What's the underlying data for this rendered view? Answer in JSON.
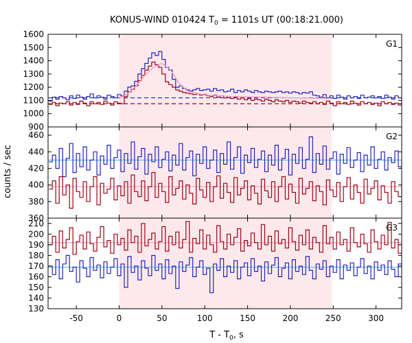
{
  "title": {
    "main": "KONUS-WIND 010424 T",
    "sub": "0",
    "rest": " = 1101s UT (00:18:21.000)"
  },
  "ylabel": "counts / sec",
  "xlabel": {
    "main": "T - T",
    "sub": "0",
    "rest": ", s"
  },
  "colors": {
    "blue": "#2020c0",
    "red": "#a00010",
    "fit": "#f0a0c8",
    "cyan": "#60c0e8",
    "band": "#fde9ec",
    "axis": "#000000"
  },
  "chart_data": {
    "type": "line",
    "xlim": [
      -83,
      330
    ],
    "x_ticks": [
      -50,
      0,
      50,
      100,
      150,
      200,
      250,
      300
    ],
    "highlight_interval": [
      0,
      248
    ],
    "panels": [
      {
        "label": "G1",
        "ylim": [
          900,
          1600
        ],
        "y_ticks": [
          900,
          1000,
          1100,
          1200,
          1300,
          1400,
          1500,
          1600
        ],
        "background_levels": [
          {
            "series": "blue",
            "value": 1120,
            "style": "dashed"
          },
          {
            "series": "red",
            "value": 1075,
            "style": "dashed"
          }
        ],
        "fit": {
          "name": "pink fit",
          "x": [
            0,
            10,
            20,
            30,
            40,
            50,
            60,
            70,
            80,
            100,
            130,
            170,
            200,
            248
          ],
          "values": [
            1115,
            1150,
            1210,
            1290,
            1350,
            1380,
            1330,
            1230,
            1170,
            1140,
            1130,
            1125,
            1120,
            1115
          ]
        },
        "series": [
          {
            "color": "blue",
            "x0": -82,
            "dx": 4,
            "values": [
              1095,
              1125,
              1110,
              1130,
              1120,
              1105,
              1135,
              1115,
              1140,
              1125,
              1110,
              1130,
              1150,
              1120,
              1135,
              1125,
              1110,
              1140,
              1130,
              1120,
              1145,
              1135,
              1170,
              1200,
              1210,
              1245,
              1300,
              1340,
              1380,
              1420,
              1460,
              1440,
              1470,
              1410,
              1350,
              1330,
              1260,
              1200,
              1210,
              1190,
              1180,
              1170,
              1180,
              1190,
              1175,
              1180,
              1185,
              1170,
              1190,
              1175,
              1180,
              1165,
              1170,
              1185,
              1160,
              1175,
              1165,
              1180,
              1170,
              1160,
              1175,
              1165,
              1160,
              1170,
              1165,
              1160,
              1165,
              1170,
              1160,
              1165,
              1155,
              1165,
              1160,
              1150,
              1160,
              1155,
              1165,
              1140,
              1135,
              1125,
              1145,
              1120,
              1135,
              1115,
              1140,
              1125,
              1110,
              1135,
              1120,
              1130,
              1115,
              1140,
              1120,
              1125,
              1135,
              1120,
              1130,
              1115,
              1140,
              1125,
              1110,
              1135,
              1120,
              1130
            ]
          },
          {
            "color": "red",
            "x0": -82,
            "dx": 4,
            "values": [
              1070,
              1085,
              1060,
              1080,
              1075,
              1090,
              1065,
              1085,
              1070,
              1095,
              1080,
              1060,
              1090,
              1075,
              1085,
              1070,
              1095,
              1080,
              1065,
              1090,
              1080,
              1075,
              1130,
              1165,
              1185,
              1210,
              1250,
              1290,
              1330,
              1360,
              1390,
              1370,
              1350,
              1300,
              1240,
              1220,
              1200,
              1180,
              1170,
              1160,
              1155,
              1150,
              1145,
              1150,
              1140,
              1145,
              1135,
              1130,
              1140,
              1125,
              1135,
              1120,
              1130,
              1115,
              1125,
              1110,
              1120,
              1105,
              1115,
              1100,
              1110,
              1105,
              1095,
              1110,
              1100,
              1090,
              1105,
              1095,
              1090,
              1100,
              1085,
              1095,
              1090,
              1080,
              1095,
              1085,
              1080,
              1090,
              1075,
              1085,
              1070,
              1095,
              1080,
              1060,
              1090,
              1075,
              1085,
              1070,
              1095,
              1080,
              1065,
              1090,
              1075,
              1085,
              1070,
              1080,
              1060,
              1090,
              1075,
              1085,
              1070,
              1080,
              1065,
              1090
            ]
          }
        ]
      },
      {
        "label": "G2",
        "ylim": [
          360,
          470
        ],
        "y_ticks": [
          360,
          380,
          400,
          420,
          440,
          460
        ],
        "fit_levels": [
          {
            "series": "blue",
            "value": 430,
            "color": "cyan"
          },
          {
            "series": "red",
            "value": 398,
            "color": "fit"
          }
        ],
        "series": [
          {
            "color": "blue",
            "x0": -82,
            "dx": 4,
            "values": [
              428,
              436,
              420,
              444,
              410,
              432,
              450,
              415,
              438,
              422,
              446,
              418,
              430,
              440,
              412,
              435,
              425,
              448,
              420,
              433,
              442,
              416,
              438,
              426,
              452,
              419,
              434,
              444,
              413,
              437,
              428,
              446,
              421,
              431,
              440,
              417,
              436,
              424,
              450,
              418,
              433,
              441,
              411,
              437,
              426,
              446,
              420,
              430,
              442,
              415,
              438,
              425,
              452,
              419,
              433,
              446,
              414,
              436,
              427,
              444,
              421,
              431,
              441,
              416,
              436,
              424,
              448,
              418,
              432,
              443,
              412,
              437,
              426,
              445,
              420,
              431,
              458,
              415,
              438,
              425,
              447,
              419,
              432,
              440,
              413,
              437,
              426,
              445,
              421,
              430,
              439,
              416,
              436,
              424,
              446,
              420,
              431,
              440,
              418,
              433,
              427,
              441,
              422,
              429
            ]
          },
          {
            "color": "red",
            "x0": -82,
            "dx": 4,
            "values": [
              395,
              405,
              378,
              410,
              388,
              400,
              372,
              408,
              392,
              385,
              404,
              380,
              398,
              410,
              376,
              402,
              390,
              395,
              408,
              382,
              399,
              387,
              404,
              378,
              412,
              392,
              386,
              405,
              381,
              398,
              415,
              385,
              402,
              392,
              379,
              410,
              388,
              396,
              405,
              383,
              400,
              390,
              377,
              408,
              394,
              385,
              403,
              380,
              398,
              411,
              384,
              402,
              391,
              379,
              409,
              388,
              396,
              405,
              382,
              399,
              390,
              377,
              407,
              393,
              385,
              404,
              380,
              398,
              410,
              383,
              401,
              391,
              378,
              408,
              389,
              396,
              404,
              381,
              399,
              392,
              376,
              406,
              394,
              386,
              403,
              380,
              398,
              409,
              383,
              400,
              391,
              378,
              407,
              389,
              396,
              405,
              382,
              399,
              391,
              378,
              404,
              392,
              386,
              400
            ]
          }
        ]
      },
      {
        "label": "G3",
        "ylim": [
          130,
          215
        ],
        "y_ticks": [
          130,
          140,
          150,
          160,
          170,
          180,
          190,
          200,
          210
        ],
        "fit_levels": [
          {
            "series": "red",
            "value": 192,
            "color": "fit"
          },
          {
            "series": "blue",
            "value": 169,
            "color": "cyan"
          }
        ],
        "series": [
          {
            "color": "red",
            "x0": -82,
            "dx": 4,
            "values": [
              190,
              198,
              183,
              203,
              187,
              195,
              206,
              181,
              193,
              199,
              186,
              202,
              191,
              184,
              197,
              207,
              188,
              194,
              182,
              200,
              190,
              196,
              185,
              204,
              192,
              198,
              183,
              210,
              189,
              195,
              201,
              186,
              193,
              207,
              184,
              198,
              190,
              202,
              187,
              195,
              212,
              183,
              196,
              191,
              204,
              186,
              199,
              190,
              183,
              208,
              193,
              186,
              200,
              190,
              197,
              205,
              184,
              194,
              189,
              201,
              192,
              186,
              209,
              190,
              198,
              184,
              203,
              191,
              195,
              187,
              206,
              193,
              185,
              199,
              190,
              204,
              186,
              197,
              192,
              183,
              208,
              191,
              197,
              186,
              202,
              190,
              195,
              184,
              206,
              192,
              188,
              200,
              191,
              183,
              204,
              193,
              186,
              199,
              190,
              211,
              187,
              195,
              182,
              192
            ]
          },
          {
            "color": "blue",
            "x0": -82,
            "dx": 4,
            "values": [
              170,
              162,
              176,
              158,
              172,
              180,
              165,
              169,
              155,
              175,
              168,
              160,
              178,
              166,
              171,
              159,
              174,
              163,
              169,
              177,
              161,
              172,
              150,
              179,
              164,
              170,
              157,
              175,
              168,
              161,
              180,
              166,
              172,
              158,
              176,
              163,
              170,
              149,
              174,
              165,
              171,
              178,
              160,
              169,
              175,
              162,
              168,
              145,
              172,
              166,
              177,
              160,
              170,
              164,
              175,
              158,
              169,
              173,
              161,
              177,
              165,
              170,
              156,
              174,
              163,
              171,
              178,
              160,
              168,
              173,
              158,
              176,
              165,
              170,
              162,
              179,
              166,
              158,
              172,
              167,
              175,
              160,
              170,
              164,
              176,
              158,
              171,
              166,
              173,
              161,
              169,
              177,
              163,
              170,
              158,
              174,
              166,
              171,
              162,
              175,
              167,
              160,
              172,
              168
            ]
          }
        ]
      }
    ]
  }
}
